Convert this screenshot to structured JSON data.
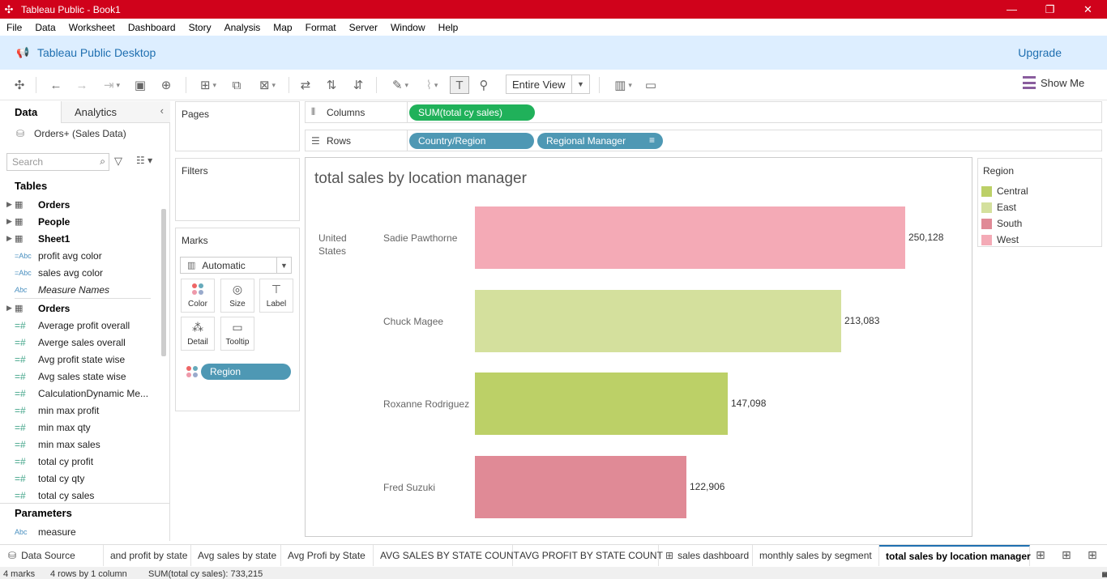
{
  "window": {
    "title": "Tableau Public - Book1",
    "minimize": "—",
    "restore": "❐",
    "close": "✕"
  },
  "menu": [
    "File",
    "Data",
    "Worksheet",
    "Dashboard",
    "Story",
    "Analysis",
    "Map",
    "Format",
    "Server",
    "Window",
    "Help"
  ],
  "banner": {
    "title": "Tableau Public Desktop",
    "upgrade": "Upgrade"
  },
  "toolbar": {
    "fit": "Entire View",
    "show_me": "Show Me"
  },
  "data_pane": {
    "tab_data": "Data",
    "tab_analytics": "Analytics",
    "datasource": "Orders+ (Sales Data)",
    "search_placeholder": "Search",
    "tables_header": "Tables",
    "tables": [
      "Orders",
      "People",
      "Sheet1"
    ],
    "calc_fields": [
      "profit avg color",
      "sales avg color",
      "Measure Names"
    ],
    "orders_table": "Orders",
    "measures": [
      "Average profit overall",
      "Averge sales overall",
      "Avg profit state wise",
      "Avg sales state wise",
      "CalculationDynamic Me...",
      "min max  profit",
      "min max  qty",
      "min max sales",
      "total cy profit",
      "total cy qty",
      "total cy sales"
    ],
    "parameters_header": "Parameters",
    "parameters": [
      "measure"
    ]
  },
  "shelves": {
    "pages": "Pages",
    "filters": "Filters",
    "marks": "Marks",
    "mark_type": "Automatic",
    "buttons": {
      "color": "Color",
      "size": "Size",
      "label": "Label",
      "detail": "Detail",
      "tooltip": "Tooltip"
    },
    "color_field": "Region",
    "columns_label": "Columns",
    "rows_label": "Rows",
    "columns_pill": "SUM(total cy sales)",
    "rows_pills": [
      "Country/Region",
      "Regional Manager"
    ]
  },
  "chart_data": {
    "type": "bar",
    "title": "total sales by location manager",
    "row_header": "United States",
    "categories": [
      "Sadie Pawthorne",
      "Chuck Magee",
      "Roxanne Rodriguez",
      "Fred Suzuki"
    ],
    "values": [
      250128,
      213083,
      147098,
      122906
    ],
    "value_labels": [
      "250,128",
      "213,083",
      "147,098",
      "122,906"
    ],
    "regions": [
      "West",
      "East",
      "Central",
      "South"
    ],
    "xlim": [
      0,
      260000
    ]
  },
  "legend": {
    "title": "Region",
    "items": [
      {
        "name": "Central",
        "color": "#bcd067"
      },
      {
        "name": "East",
        "color": "#d4e09d"
      },
      {
        "name": "South",
        "color": "#e08a96"
      },
      {
        "name": "West",
        "color": "#f4aab6"
      }
    ]
  },
  "sheet_tabs": {
    "datasource": "Data Source",
    "tabs": [
      "and profit by state",
      "Avg sales by state",
      "Avg Profi by State",
      "AVG SALES BY STATE COUNT",
      "AVG PROFIT BY STATE COUNT",
      "sales dashboard",
      "monthly sales by segment",
      "total sales by location manager"
    ],
    "active": "total sales by location manager"
  },
  "status": {
    "marks": "4 marks",
    "rows_cols": "4 rows by 1 column",
    "sum": "SUM(total cy sales): 733,215"
  }
}
